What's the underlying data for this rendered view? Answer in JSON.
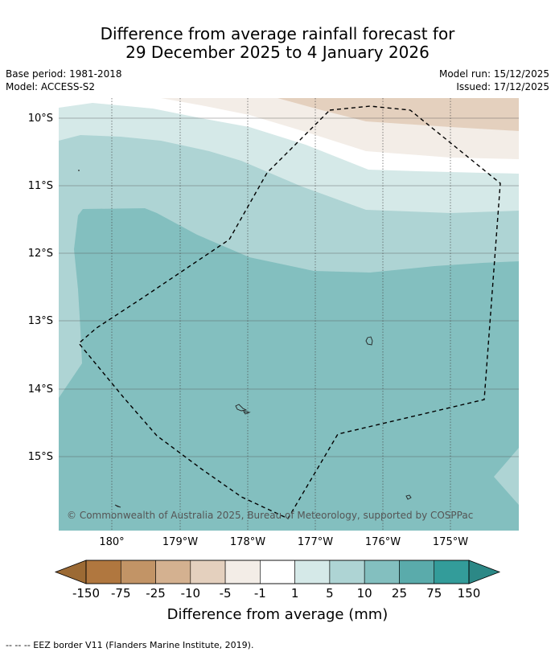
{
  "title": {
    "line1": "Difference from average rainfall forecast for",
    "line2": "29 December 2025 to 4 January 2026"
  },
  "meta_left": {
    "base_period": "Base period: 1981-2018",
    "model": "Model: ACCESS-S2"
  },
  "meta_right": {
    "model_run": "Model run: 15/12/2025",
    "issued": "Issued: 17/12/2025"
  },
  "map": {
    "lat_labels": [
      "10°S",
      "11°S",
      "12°S",
      "13°S",
      "14°S",
      "15°S"
    ],
    "lon_labels": [
      "180°",
      "179°W",
      "178°W",
      "177°W",
      "176°W",
      "175°W"
    ],
    "copyright": "© Commonwealth of Australia 2025, Bureau of Meteorology, supported by COSPPac"
  },
  "colorbar": {
    "tick_labels": [
      "-150",
      "-75",
      "-25",
      "-10",
      "-5",
      "-1",
      "1",
      "5",
      "10",
      "25",
      "75",
      "150"
    ],
    "colors": [
      "#9c6a34",
      "#b0773f",
      "#c29466",
      "#d4b190",
      "#e4d0be",
      "#f3ede7",
      "#ffffff",
      "#d5e9e8",
      "#aed4d4",
      "#83bfbf",
      "#5aabab",
      "#339c9a",
      "#2c8886"
    ],
    "label": "Difference from average (mm)"
  },
  "footer": {
    "text": "--  --  -- EEZ border V11 (Flanders Marine Institute, 2019)."
  }
}
